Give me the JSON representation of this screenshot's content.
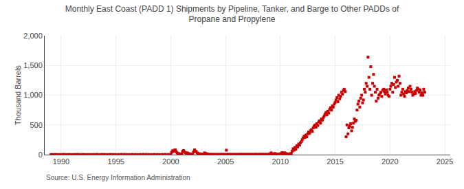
{
  "chart_data": {
    "type": "scatter",
    "title": "Monthly East Coast (PADD 1) Shipments by Pipeline, Tanker, and Barge to Other PADDs of\nPropane and Propylene",
    "ylabel": "Thousand Barrels",
    "annotations": [
      "Source: U.S. Energy Information Administration"
    ],
    "color": "#cc0000",
    "marker": "square",
    "grid": true,
    "xlim": [
      1988.5,
      2025.5
    ],
    "xticks": [
      1990,
      1995,
      2000,
      2005,
      2010,
      2015,
      2020,
      2025
    ],
    "ylim": [
      0,
      2000
    ],
    "yticks": [
      0,
      500,
      {
        "value": 1000,
        "label": "1,000"
      },
      {
        "value": 1500,
        "label": "1,500"
      },
      {
        "value": 2000,
        "label": "2,000"
      }
    ],
    "x": [
      1989.08,
      1989.25,
      1989.5,
      1989.75,
      1990.0,
      1990.25,
      1990.5,
      1990.75,
      1991.0,
      1991.25,
      1991.5,
      1991.75,
      1992.0,
      1992.25,
      1992.5,
      1992.75,
      1993.0,
      1993.25,
      1993.5,
      1993.75,
      1994.0,
      1994.25,
      1994.5,
      1994.75,
      1995.0,
      1995.25,
      1995.5,
      1995.75,
      1996.0,
      1996.25,
      1996.5,
      1996.75,
      1997.0,
      1997.25,
      1997.5,
      1997.75,
      1998.0,
      1998.25,
      1998.5,
      1998.75,
      1999.0,
      1999.25,
      1999.5,
      1999.75,
      2000.0,
      2000.08,
      2000.17,
      2000.25,
      2000.33,
      2000.42,
      2000.5,
      2000.58,
      2000.67,
      2000.75,
      2000.83,
      2000.92,
      2001.0,
      2001.08,
      2001.17,
      2001.25,
      2001.33,
      2001.42,
      2001.5,
      2001.58,
      2001.67,
      2001.75,
      2001.83,
      2001.92,
      2002.0,
      2002.08,
      2002.17,
      2002.25,
      2002.33,
      2002.42,
      2002.5,
      2002.58,
      2002.67,
      2002.75,
      2002.83,
      2002.92,
      2003.0,
      2003.08,
      2003.17,
      2003.25,
      2003.33,
      2003.42,
      2003.5,
      2003.58,
      2003.67,
      2003.75,
      2003.83,
      2003.92,
      2004.0,
      2004.08,
      2004.17,
      2004.25,
      2004.33,
      2004.42,
      2004.5,
      2004.58,
      2004.67,
      2004.75,
      2004.83,
      2004.92,
      2005.0,
      2005.08,
      2005.17,
      2005.25,
      2005.33,
      2005.42,
      2005.5,
      2005.58,
      2005.67,
      2005.75,
      2005.83,
      2005.92,
      2006.0,
      2006.08,
      2006.17,
      2006.25,
      2006.33,
      2006.42,
      2006.5,
      2006.58,
      2006.67,
      2006.75,
      2006.83,
      2006.92,
      2007.0,
      2007.08,
      2007.17,
      2007.25,
      2007.33,
      2007.42,
      2007.5,
      2007.58,
      2007.67,
      2007.75,
      2007.83,
      2007.92,
      2008.0,
      2008.08,
      2008.17,
      2008.25,
      2008.33,
      2008.42,
      2008.5,
      2008.58,
      2008.67,
      2008.75,
      2008.83,
      2008.92,
      2009.0,
      2009.08,
      2009.17,
      2009.25,
      2009.33,
      2009.42,
      2009.5,
      2009.58,
      2009.67,
      2009.75,
      2009.83,
      2009.92,
      2010.0,
      2010.08,
      2010.17,
      2010.25,
      2010.33,
      2010.42,
      2010.5,
      2010.58,
      2010.67,
      2010.75,
      2010.83,
      2010.92,
      2011.0,
      2011.08,
      2011.17,
      2011.25,
      2011.33,
      2011.42,
      2011.5,
      2011.58,
      2011.67,
      2011.75,
      2011.83,
      2011.92,
      2012.0,
      2012.08,
      2012.17,
      2012.25,
      2012.33,
      2012.42,
      2012.5,
      2012.58,
      2012.67,
      2012.75,
      2012.83,
      2012.92,
      2013.0,
      2013.08,
      2013.17,
      2013.25,
      2013.33,
      2013.42,
      2013.5,
      2013.58,
      2013.67,
      2013.75,
      2013.83,
      2013.92,
      2014.0,
      2014.08,
      2014.17,
      2014.25,
      2014.33,
      2014.42,
      2014.5,
      2014.58,
      2014.67,
      2014.75,
      2014.83,
      2014.92,
      2015.0,
      2015.08,
      2015.17,
      2015.25,
      2015.33,
      2015.42,
      2015.5,
      2015.58,
      2015.67,
      2015.75,
      2015.83,
      2015.92,
      2016.0,
      2016.08,
      2016.17,
      2016.25,
      2016.33,
      2016.42,
      2016.5,
      2016.58,
      2016.67,
      2016.75,
      2016.83,
      2016.92,
      2017.0,
      2017.08,
      2017.17,
      2017.25,
      2017.33,
      2017.42,
      2017.5,
      2017.58,
      2017.67,
      2017.75,
      2017.83,
      2017.92,
      2018.0,
      2018.08,
      2018.17,
      2018.25,
      2018.33,
      2018.42,
      2018.5,
      2018.58,
      2018.67,
      2018.75,
      2018.83,
      2018.92,
      2019.0,
      2019.08,
      2019.17,
      2019.25,
      2019.33,
      2019.42,
      2019.5,
      2019.58,
      2019.67,
      2019.75,
      2019.83,
      2019.92,
      2020.0,
      2020.08,
      2020.17,
      2020.25,
      2020.33,
      2020.42,
      2020.5,
      2020.58,
      2020.67,
      2020.75,
      2020.83,
      2020.92,
      2021.0,
      2021.08,
      2021.17,
      2021.25,
      2021.33,
      2021.42,
      2021.5,
      2021.58,
      2021.67,
      2021.75,
      2021.83,
      2021.92,
      2022.0,
      2022.08,
      2022.17,
      2022.25,
      2022.33,
      2022.42,
      2022.5,
      2022.58,
      2022.67,
      2022.75,
      2022.83,
      2022.92,
      2023.0,
      2023.08,
      2023.17
    ],
    "values": [
      3,
      2,
      4,
      2,
      3,
      5,
      2,
      4,
      2,
      3,
      5,
      3,
      4,
      2,
      3,
      2,
      3,
      5,
      2,
      4,
      3,
      2,
      4,
      3,
      2,
      3,
      5,
      4,
      3,
      2,
      4,
      3,
      2,
      3,
      5,
      4,
      3,
      2,
      4,
      3,
      2,
      3,
      5,
      4,
      5,
      40,
      65,
      55,
      75,
      80,
      50,
      30,
      20,
      15,
      10,
      5,
      10,
      55,
      70,
      45,
      35,
      25,
      30,
      20,
      15,
      10,
      8,
      5,
      5,
      45,
      80,
      60,
      50,
      30,
      20,
      15,
      10,
      8,
      5,
      3,
      5,
      30,
      20,
      15,
      10,
      5,
      3,
      2,
      5,
      3,
      2,
      3,
      3,
      2,
      3,
      2,
      3,
      2,
      4,
      3,
      2,
      4,
      3,
      2,
      3,
      75,
      5,
      3,
      2,
      4,
      3,
      2,
      3,
      2,
      4,
      3,
      2,
      3,
      4,
      2,
      3,
      5,
      3,
      2,
      4,
      3,
      2,
      3,
      3,
      2,
      4,
      3,
      2,
      4,
      3,
      2,
      3,
      5,
      3,
      2,
      4,
      3,
      2,
      4,
      3,
      5,
      2,
      3,
      4,
      3,
      2,
      5,
      5,
      15,
      30,
      10,
      5,
      8,
      20,
      10,
      5,
      3,
      8,
      5,
      10,
      20,
      35,
      15,
      25,
      30,
      18,
      8,
      12,
      5,
      10,
      15,
      25,
      60,
      100,
      75,
      120,
      90,
      150,
      130,
      180,
      160,
      200,
      220,
      250,
      280,
      310,
      290,
      330,
      300,
      350,
      380,
      360,
      400,
      420,
      390,
      450,
      480,
      500,
      460,
      520,
      490,
      550,
      570,
      530,
      600,
      580,
      620,
      650,
      680,
      710,
      670,
      730,
      700,
      760,
      790,
      750,
      820,
      800,
      850,
      880,
      920,
      960,
      890,
      1000,
      940,
      980,
      1050,
      1020,
      1080,
      1100,
      1060,
      300,
      500,
      350,
      450,
      480,
      520,
      400,
      460,
      530,
      600,
      560,
      580,
      750,
      850,
      900,
      800,
      950,
      1000,
      870,
      920,
      1100,
      1050,
      1200,
      1150,
      1640,
      1300,
      1100,
      1480,
      1000,
      1200,
      1350,
      1150,
      1050,
      900,
      1100,
      950,
      1000,
      1020,
      1050,
      980,
      1080,
      1100,
      1060,
      1020,
      1090,
      1050,
      1000,
      980,
      1100,
      1150,
      1200,
      1050,
      1180,
      1300,
      1130,
      1220,
      1250,
      1150,
      1320,
      1200,
      1000,
      1050,
      1100,
      1020,
      980,
      1060,
      1040,
      1080,
      1120,
      1060,
      1150,
      1100,
      1050,
      1000,
      1020,
      1060,
      1030,
      1080,
      1120,
      1100,
      1050,
      1090,
      1000,
      1040,
      1000,
      1100,
      1050
    ]
  }
}
